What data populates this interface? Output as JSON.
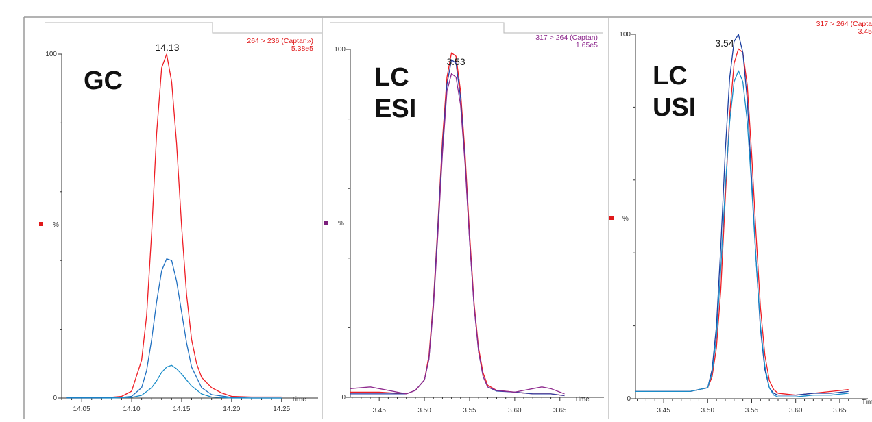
{
  "chart_data": [
    {
      "type": "line",
      "technique": "GC",
      "transition": "264 > 236 (Captan»)",
      "intensity": "5.38e5",
      "peak_label": "14.13",
      "ylabel": "%",
      "xlabel": "Time",
      "y_ticks": [
        "0",
        "100"
      ],
      "x_ticks": [
        "14.05",
        "14.10",
        "14.15",
        "14.20",
        "14.25"
      ],
      "xlim": [
        14.03,
        14.255
      ],
      "ylim": [
        0,
        100
      ],
      "marker_color": "#e0191b",
      "series": [
        {
          "color": "#ee1d24",
          "x": [
            14.035,
            14.07,
            14.09,
            14.1,
            14.11,
            14.115,
            14.12,
            14.125,
            14.13,
            14.135,
            14.14,
            14.145,
            14.15,
            14.155,
            14.16,
            14.165,
            14.17,
            14.18,
            14.19,
            14.2,
            14.22,
            14.25
          ],
          "y": [
            0,
            0,
            0.5,
            2,
            11,
            24,
            48,
            77,
            96,
            100,
            92,
            74,
            50,
            30,
            17,
            10,
            6,
            3,
            1.5,
            0.5,
            0.3,
            0.3
          ]
        },
        {
          "color": "#1f6fc0",
          "x": [
            14.035,
            14.07,
            14.09,
            14.1,
            14.11,
            14.115,
            14.12,
            14.125,
            14.13,
            14.135,
            14.14,
            14.145,
            14.15,
            14.155,
            14.16,
            14.17,
            14.18,
            14.2,
            14.22,
            14.25
          ],
          "y": [
            0.2,
            0.2,
            0.2,
            0.5,
            3,
            8,
            17,
            28,
            37,
            40.5,
            40,
            34,
            25,
            16,
            9,
            3,
            1,
            0.2,
            0,
            0
          ]
        },
        {
          "color": "#1a8cc8",
          "x": [
            14.035,
            14.08,
            14.1,
            14.11,
            14.12,
            14.125,
            14.13,
            14.135,
            14.14,
            14.145,
            14.15,
            14.16,
            14.17,
            14.18,
            14.2,
            14.25
          ],
          "y": [
            0,
            0,
            0.2,
            0.8,
            3,
            5,
            7.5,
            9,
            9.5,
            8.5,
            7,
            3.5,
            1.2,
            0.3,
            0,
            0
          ]
        }
      ]
    },
    {
      "type": "line",
      "technique": "LC\nESI",
      "transition": "317 > 264 (Captan)",
      "intensity": "1.65e5",
      "peak_label": "3.53",
      "ylabel": "%",
      "xlabel": "Time",
      "y_ticks": [
        "0",
        "100"
      ],
      "x_ticks": [
        "3.45",
        "3.50",
        "3.55",
        "3.60",
        "3.65"
      ],
      "xlim": [
        3.418,
        3.657
      ],
      "ylim": [
        0,
        100
      ],
      "marker_color": "#7b1f7b",
      "series": [
        {
          "color": "#ee1d24",
          "x": [
            3.418,
            3.45,
            3.48,
            3.49,
            3.5,
            3.505,
            3.51,
            3.515,
            3.52,
            3.525,
            3.53,
            3.535,
            3.54,
            3.545,
            3.55,
            3.555,
            3.56,
            3.565,
            3.57,
            3.58,
            3.6,
            3.62,
            3.64,
            3.655
          ],
          "y": [
            1.5,
            1.5,
            1,
            2,
            5,
            12,
            28,
            50,
            74,
            92,
            99,
            98,
            88,
            70,
            47,
            27,
            14,
            7,
            3.5,
            2,
            1.5,
            1,
            1,
            0.5
          ]
        },
        {
          "color": "#2b3fa6",
          "x": [
            3.418,
            3.45,
            3.48,
            3.49,
            3.5,
            3.505,
            3.51,
            3.515,
            3.52,
            3.525,
            3.53,
            3.535,
            3.54,
            3.545,
            3.55,
            3.555,
            3.56,
            3.565,
            3.57,
            3.58,
            3.6,
            3.62,
            3.64,
            3.655
          ],
          "y": [
            1,
            1,
            1,
            2,
            5,
            11,
            27,
            49,
            72,
            90,
            97,
            96,
            86,
            68,
            45,
            26,
            13,
            6,
            3,
            1.8,
            1.5,
            1,
            1,
            0.5
          ]
        },
        {
          "color": "#8e2a8e",
          "x": [
            3.418,
            3.44,
            3.45,
            3.48,
            3.49,
            3.5,
            3.505,
            3.51,
            3.515,
            3.52,
            3.525,
            3.53,
            3.535,
            3.54,
            3.545,
            3.55,
            3.555,
            3.56,
            3.565,
            3.57,
            3.58,
            3.6,
            3.62,
            3.63,
            3.64,
            3.655
          ],
          "y": [
            2.5,
            3,
            2.5,
            1,
            2,
            5,
            11,
            26,
            47,
            70,
            88,
            93,
            92,
            84,
            67,
            45,
            26,
            13,
            6,
            3,
            2,
            1.5,
            2.5,
            3,
            2.5,
            1
          ]
        }
      ]
    },
    {
      "type": "line",
      "technique": "LC\nUSI",
      "transition": "317 > 264 (Capta",
      "intensity": "3.45",
      "peak_label": "3.54",
      "ylabel": "%",
      "xlabel": "Tim",
      "y_ticks": [
        "0",
        "100"
      ],
      "x_ticks": [
        "3.45",
        "3.50",
        "3.55",
        "3.60",
        "3.65"
      ],
      "xlim": [
        3.418,
        3.668
      ],
      "ylim": [
        0,
        100
      ],
      "marker_color": "#e0191b",
      "series": [
        {
          "color": "#ee1d24",
          "x": [
            3.418,
            3.45,
            3.48,
            3.5,
            3.505,
            3.51,
            3.515,
            3.52,
            3.525,
            3.53,
            3.535,
            3.54,
            3.545,
            3.55,
            3.555,
            3.56,
            3.565,
            3.57,
            3.575,
            3.58,
            3.6,
            3.62,
            3.64,
            3.66
          ],
          "y": [
            2,
            2,
            2,
            3,
            6,
            14,
            30,
            55,
            78,
            92,
            96,
            95,
            86,
            67,
            45,
            25,
            12,
            5,
            2.5,
            1.5,
            1,
            1.5,
            2,
            2.5
          ]
        },
        {
          "color": "#1c3fa0",
          "x": [
            3.418,
            3.45,
            3.48,
            3.5,
            3.505,
            3.51,
            3.515,
            3.52,
            3.525,
            3.53,
            3.535,
            3.54,
            3.545,
            3.55,
            3.555,
            3.56,
            3.565,
            3.57,
            3.575,
            3.58,
            3.6,
            3.62,
            3.64,
            3.66
          ],
          "y": [
            2,
            2,
            2,
            3,
            8,
            20,
            42,
            68,
            88,
            98,
            100,
            95,
            82,
            60,
            38,
            19,
            8,
            3,
            1.5,
            1,
            1,
            1.5,
            1.5,
            2
          ]
        },
        {
          "color": "#1a8cc8",
          "x": [
            3.418,
            3.45,
            3.48,
            3.5,
            3.505,
            3.51,
            3.515,
            3.52,
            3.525,
            3.53,
            3.535,
            3.54,
            3.545,
            3.55,
            3.555,
            3.56,
            3.565,
            3.57,
            3.575,
            3.58,
            3.6,
            3.62,
            3.64,
            3.66
          ],
          "y": [
            2,
            2,
            2,
            3,
            7,
            17,
            36,
            58,
            76,
            87,
            90,
            87,
            76,
            58,
            38,
            20,
            9,
            3,
            1,
            0.5,
            0.5,
            1,
            1,
            1.5
          ]
        }
      ]
    }
  ]
}
